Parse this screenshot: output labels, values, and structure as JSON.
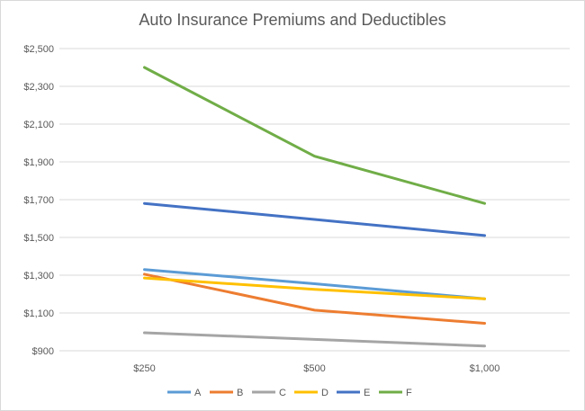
{
  "chart_data": {
    "type": "line",
    "title": "Auto Insurance Premiums and Deductibles",
    "categories": [
      "$250",
      "$500",
      "$1,000"
    ],
    "ylim": [
      900,
      2500
    ],
    "yticks": [
      900,
      1100,
      1300,
      1500,
      1700,
      1900,
      2100,
      2300,
      2500
    ],
    "ytick_labels": [
      "$900",
      "$1,100",
      "$1,300",
      "$1,500",
      "$1,700",
      "$1,900",
      "$2,100",
      "$2,300",
      "$2,500"
    ],
    "grid": true,
    "legend": "bottom",
    "series": [
      {
        "name": "A",
        "color": "#5b9bd5",
        "values": [
          1330,
          1255,
          1175
        ]
      },
      {
        "name": "B",
        "color": "#ed7d31",
        "values": [
          1305,
          1115,
          1045
        ]
      },
      {
        "name": "C",
        "color": "#a5a5a5",
        "values": [
          995,
          960,
          925
        ]
      },
      {
        "name": "D",
        "color": "#ffc000",
        "values": [
          1285,
          1225,
          1175
        ]
      },
      {
        "name": "E",
        "color": "#4472c4",
        "values": [
          1680,
          1595,
          1510
        ]
      },
      {
        "name": "F",
        "color": "#70ad47",
        "values": [
          2400,
          1930,
          1680
        ]
      }
    ]
  }
}
